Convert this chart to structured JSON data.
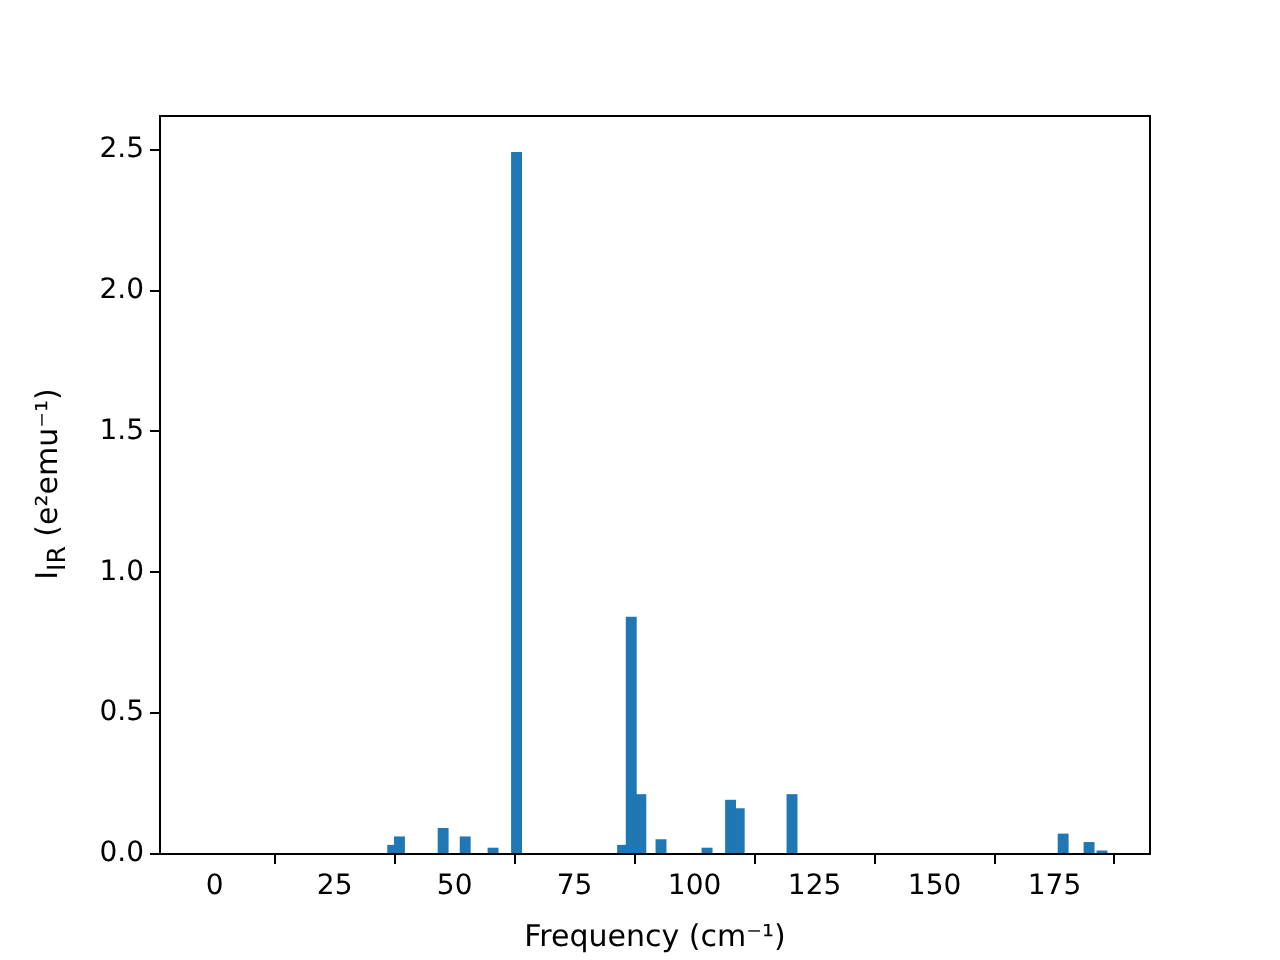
{
  "chart_data": {
    "type": "bar",
    "xlabel": "Frequency (cm⁻¹)",
    "ylabel": "I$_{IR}$ (e²emu⁻¹)",
    "x": [
      37.1,
      38.5,
      47.6,
      52.2,
      58.0,
      62.9,
      85.0,
      86.8,
      88.8,
      93.0,
      102.6,
      107.5,
      109.3,
      120.3,
      176.8,
      182.2,
      184.9
    ],
    "values": [
      0.03,
      0.06,
      0.09,
      0.06,
      0.02,
      2.49,
      0.03,
      0.84,
      0.21,
      0.05,
      0.02,
      0.19,
      0.16,
      0.21,
      0.07,
      0.04,
      0.01
    ],
    "color": "#1f77b4",
    "xlim": [
      -11.4,
      194.9
    ],
    "xticks": [
      0,
      25,
      50,
      75,
      100,
      125,
      150,
      175
    ],
    "ylim": [
      0,
      2.62
    ],
    "yticks": [
      {
        "value": 0,
        "label": "0.0"
      },
      0.5,
      {
        "value": 1,
        "label": "1.0"
      },
      1.5,
      {
        "value": 2,
        "label": "2.0"
      },
      2.5
    ]
  }
}
